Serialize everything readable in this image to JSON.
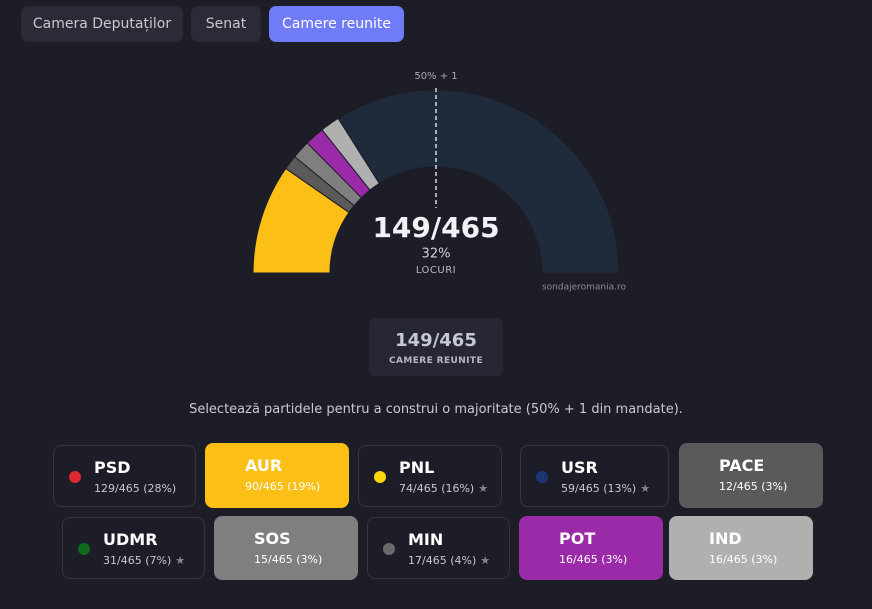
{
  "tabs": [
    {
      "label": "Camera Deputaților",
      "active": false
    },
    {
      "label": "Senat",
      "active": false
    },
    {
      "label": "Camere reunite",
      "active": true
    }
  ],
  "gauge": {
    "majority_label": "50% + 1",
    "total": 465,
    "seats_label": "149/465",
    "percent_label": "32%",
    "caption": "LOCURI",
    "watermark": "sondajeromania.ro",
    "remainder_color": "#1f2b3b"
  },
  "summary": {
    "value": "149/465",
    "label": "CAMERE REUNITE"
  },
  "instruction": "Selectează partidele pentru a construi o majoritate (50% + 1 din mandate).",
  "parties": [
    {
      "name": "PSD",
      "seats": 129,
      "detail": "129/465 (28%)",
      "color": "#dc2a35",
      "selected": false
    },
    {
      "name": "AUR",
      "seats": 90,
      "detail": "90/465 (19%)",
      "color": "#fbbf16",
      "selected": true
    },
    {
      "name": "PNL",
      "seats": 74,
      "detail": "74/465 (16%)",
      "color": "#ffd60a",
      "selected": false,
      "star": "★"
    },
    {
      "name": "USR",
      "seats": 59,
      "detail": "59/465 (13%)",
      "color": "#1a3570",
      "selected": false,
      "star": "★"
    },
    {
      "name": "PACE",
      "seats": 12,
      "detail": "12/465 (3%)",
      "color": "#5a5a5a",
      "selected": true
    },
    {
      "name": "UDMR",
      "seats": 31,
      "detail": "31/465 (7%)",
      "color": "#0f6b1e",
      "selected": false,
      "star": "★"
    },
    {
      "name": "SOS",
      "seats": 15,
      "detail": "15/465 (3%)",
      "color": "#7f7f7f",
      "selected": true
    },
    {
      "name": "MIN",
      "seats": 17,
      "detail": "17/465 (4%)",
      "color": "#6a6a6a",
      "selected": false,
      "star": "★"
    },
    {
      "name": "POT",
      "seats": 16,
      "detail": "16/465 (3%)",
      "color": "#9b2aa8",
      "selected": true
    },
    {
      "name": "IND",
      "seats": 16,
      "detail": "16/465 (3%)",
      "color": "#b0b0b0",
      "selected": true
    }
  ]
}
